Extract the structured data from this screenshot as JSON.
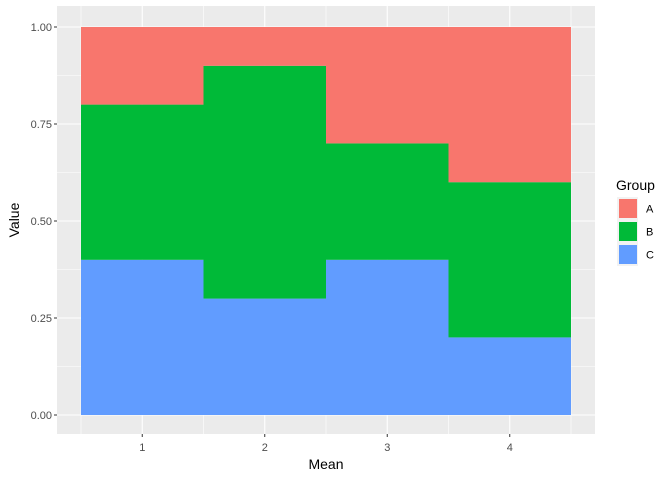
{
  "chart_data": {
    "type": "bar",
    "stacked": true,
    "categories": [
      "1",
      "2",
      "3",
      "4"
    ],
    "xlabel": "Mean",
    "ylabel": "Value",
    "ylim": [
      0,
      1
    ],
    "yticks": [
      "0.00",
      "0.25",
      "0.50",
      "0.75",
      "1.00"
    ],
    "grid": true,
    "legend": {
      "title": "Group",
      "position": "right"
    },
    "series": [
      {
        "name": "A",
        "color": "#F8766D",
        "values": [
          0.2,
          0.1,
          0.3,
          0.4
        ]
      },
      {
        "name": "B",
        "color": "#00BA38",
        "values": [
          0.4,
          0.6,
          0.3,
          0.4
        ]
      },
      {
        "name": "C",
        "color": "#619CFF",
        "values": [
          0.4,
          0.3,
          0.4,
          0.2
        ]
      }
    ]
  }
}
